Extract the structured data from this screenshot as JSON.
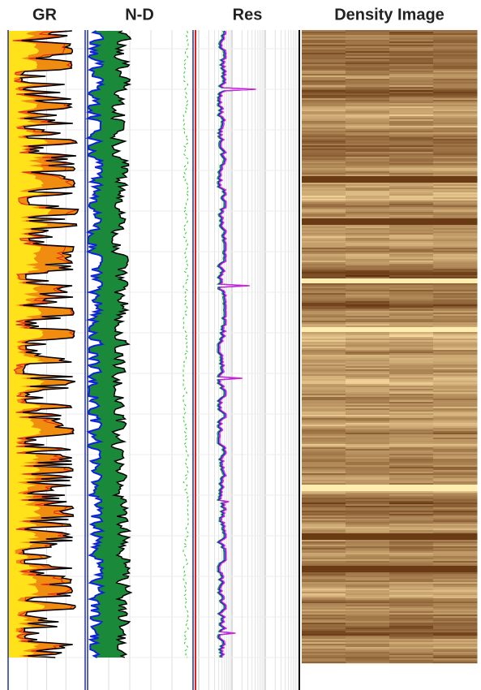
{
  "tracks": [
    {
      "title": "GR"
    },
    {
      "title": "N-D"
    },
    {
      "title": "Res"
    },
    {
      "title": "Density Image"
    }
  ]
}
